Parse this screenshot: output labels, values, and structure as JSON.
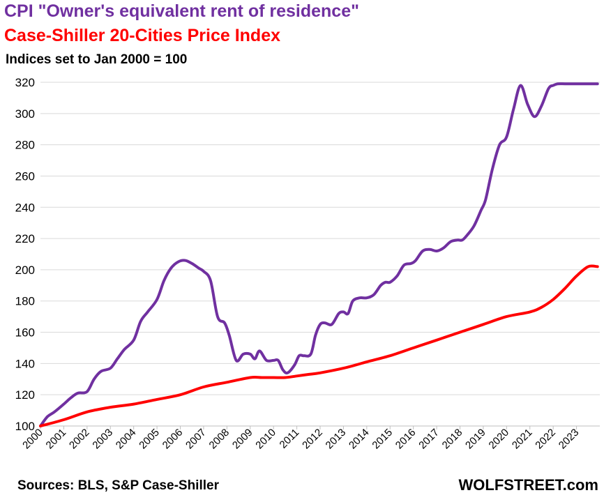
{
  "chart_data": {
    "type": "line",
    "title": "CPI \"Owner's equivalent rent of residence\"",
    "title_color": "#7030a0",
    "subtitle_line": "Case-Shiller 20-Cities Price Index",
    "subtitle_color": "#ff0000",
    "note": "Indices set to Jan 2000 = 100",
    "ylim": [
      100,
      320
    ],
    "yticks": [
      100,
      120,
      140,
      160,
      180,
      200,
      220,
      240,
      260,
      280,
      300,
      320
    ],
    "xlim": [
      2000,
      2024.0
    ],
    "xticks": [
      "2000",
      "2001",
      "2002",
      "2003",
      "2004",
      "2005",
      "2006",
      "2007",
      "2008",
      "2009",
      "2010",
      "2011",
      "2012",
      "2013",
      "2014",
      "2015",
      "2016",
      "2017",
      "2018",
      "2019",
      "2020",
      "2021",
      "2022",
      "2023"
    ],
    "grid": true,
    "legend": "none",
    "series": [
      {
        "name": "CPI \"Owner's equivalent rent of residence\"",
        "color": "#7030a0",
        "x": [
          2000.0,
          2000.3,
          2000.6,
          2001.0,
          2001.3,
          2001.6,
          2002.0,
          2002.3,
          2002.6,
          2003.0,
          2003.3,
          2003.6,
          2004.0,
          2004.3,
          2004.6,
          2005.0,
          2005.3,
          2005.6,
          2005.9,
          2006.2,
          2006.5,
          2006.8,
          2007.0,
          2007.3,
          2007.6,
          2007.9,
          2008.1,
          2008.4,
          2008.7,
          2009.0,
          2009.2,
          2009.4,
          2009.7,
          2010.0,
          2010.2,
          2010.4,
          2010.6,
          2010.9,
          2011.1,
          2011.3,
          2011.6,
          2011.8,
          2012.0,
          2012.2,
          2012.5,
          2012.8,
          2013.0,
          2013.2,
          2013.4,
          2013.7,
          2014.0,
          2014.3,
          2014.6,
          2014.8,
          2015.0,
          2015.3,
          2015.6,
          2015.9,
          2016.1,
          2016.4,
          2016.7,
          2017.0,
          2017.3,
          2017.6,
          2017.9,
          2018.1,
          2018.3,
          2018.6,
          2018.9,
          2019.1,
          2019.4,
          2019.7,
          2020.0,
          2020.3,
          2020.6,
          2020.9,
          2021.2,
          2021.5,
          2021.8,
          2022.0,
          2022.2,
          2022.5,
          2022.8,
          2023.0,
          2023.3,
          2023.6,
          2023.9
        ],
        "values": [
          100,
          106,
          109,
          114,
          118,
          121,
          122,
          130,
          135,
          137,
          143,
          149,
          155,
          167,
          173,
          181,
          193,
          201,
          205,
          206,
          204,
          201,
          199,
          193,
          170,
          166,
          158,
          142,
          146,
          146,
          143,
          148,
          142,
          142,
          142,
          136,
          134,
          139,
          145,
          145,
          146,
          158,
          165,
          166,
          165,
          172,
          173,
          172,
          180,
          182,
          182,
          184,
          190,
          192,
          192,
          196,
          203,
          204,
          206,
          212,
          213,
          212,
          214,
          218,
          219,
          219,
          222,
          228,
          238,
          245,
          265,
          280,
          285,
          303,
          318,
          306,
          298,
          305,
          316,
          318,
          319,
          319,
          319,
          319,
          319,
          319,
          319
        ]
      },
      {
        "name": "Case-Shiller 20-Cities Price Index",
        "color": "#ff0000",
        "x": [
          2000.0,
          2001.0,
          2002.0,
          2003.0,
          2004.0,
          2005.0,
          2006.0,
          2007.0,
          2008.0,
          2009.0,
          2009.5,
          2010.0,
          2010.5,
          2011.0,
          2011.5,
          2012.0,
          2013.0,
          2014.0,
          2015.0,
          2016.0,
          2017.0,
          2018.0,
          2019.0,
          2020.0,
          2021.0,
          2021.5,
          2022.0,
          2022.5,
          2023.0,
          2023.5,
          2023.9
        ],
        "values": [
          100,
          104,
          109,
          112,
          114,
          117,
          120,
          125,
          128,
          131,
          131,
          131,
          131,
          132,
          133,
          134,
          137,
          141,
          145,
          150,
          155,
          160,
          165,
          170,
          173,
          176,
          181,
          188,
          196,
          202,
          202
        ]
      }
    ],
    "source": "Sources: BLS, S&P Case-Shiller",
    "brand": "WOLFSTREET.com"
  }
}
